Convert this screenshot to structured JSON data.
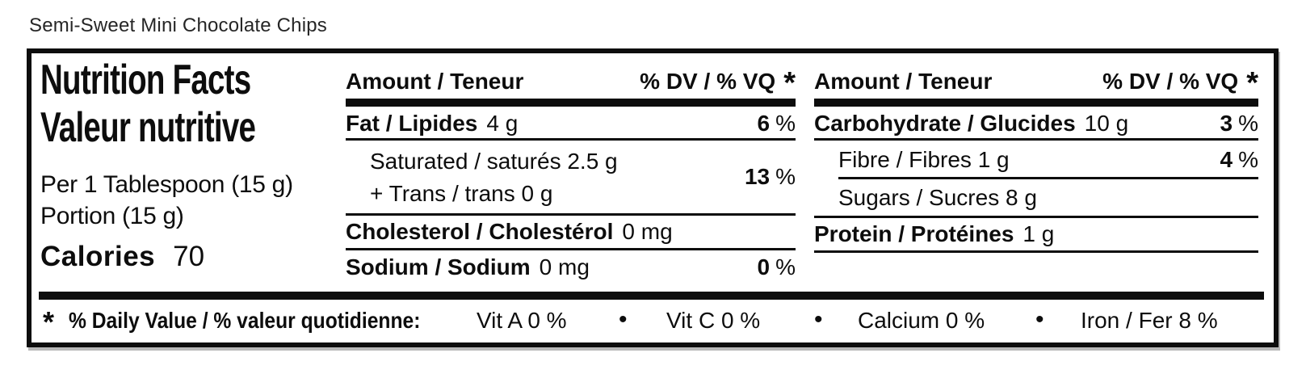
{
  "product_title": "Semi-Sweet Mini Chocolate Chips",
  "label": {
    "title_en": "Nutrition Facts",
    "title_fr": "Valeur nutritive",
    "serving_size_en": "Per 1 Tablespoon (15 g)",
    "serving_size_fr": "Portion (15 g)",
    "calories_label": "Calories",
    "calories_value": "70",
    "percent_sign": "%",
    "column_header": {
      "amount": "Amount / Teneur",
      "daily_value": "% DV / % VQ",
      "footnote_marker": "*"
    },
    "nutrients_left": {
      "fat": {
        "name": "Fat / Lipides",
        "amount": "4 g",
        "dv": "6"
      },
      "saturated_trans": {
        "line1": "Saturated / saturés 2.5 g",
        "line2": "+ Trans / trans 0 g",
        "dv": "13"
      },
      "cholesterol": {
        "name": "Cholesterol / Cholestérol",
        "amount": "0 mg"
      },
      "sodium": {
        "name": "Sodium / Sodium",
        "amount": "0 mg",
        "dv": "0"
      }
    },
    "nutrients_right": {
      "carbohydrate": {
        "name": "Carbohydrate / Glucides",
        "amount": "10 g",
        "dv": "3"
      },
      "fibre": {
        "name": "Fibre / Fibres 1 g",
        "dv": "4"
      },
      "sugars": {
        "name": "Sugars / Sucres 8 g"
      },
      "protein": {
        "name": "Protein / Protéines",
        "amount": "1 g"
      }
    },
    "footer": {
      "footnote_marker": "*",
      "daily_value_label": "% Daily Value / % valeur quotidienne:",
      "separator": "•",
      "micronutrients": [
        "Vit A 0 %",
        "Vit C 0 %",
        "Calcium 0 %",
        "Iron / Fer 8 %"
      ]
    }
  }
}
